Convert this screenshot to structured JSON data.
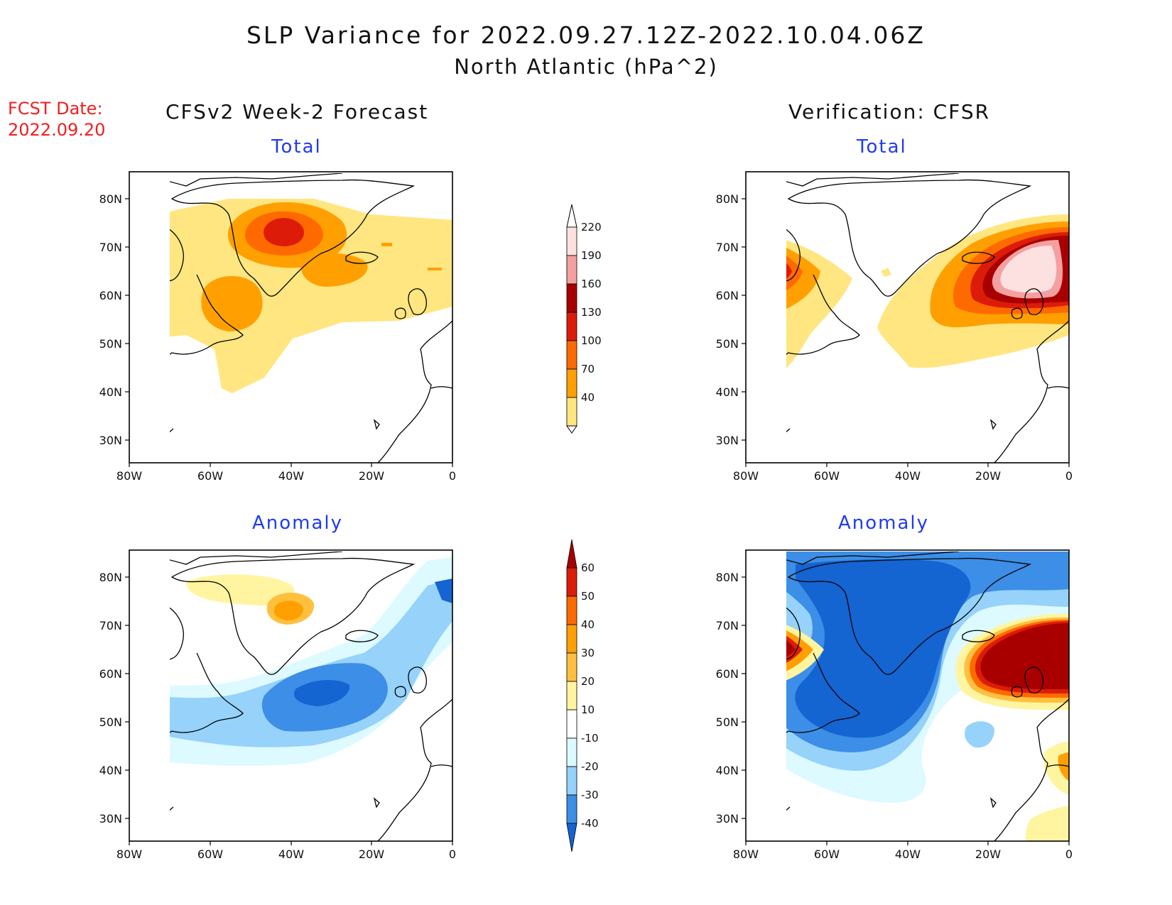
{
  "title_line1": "SLP Variance for 2022.09.27.12Z-2022.10.04.06Z",
  "title_line2": "North Atlantic (hPa^2)",
  "fcst_date_label": "FCST Date:",
  "fcst_date_value": "2022.09.20",
  "columns": {
    "left": "CFSv2 Week-2 Forecast",
    "right": "Verification: CFSR"
  },
  "panels": {
    "fcst_total": "Total",
    "verif_total": "Total",
    "fcst_anomaly": "Anomaly",
    "verif_anomaly": "Anomaly"
  },
  "axes": {
    "lat_labels": [
      "80N",
      "70N",
      "60N",
      "50N",
      "40N",
      "30N"
    ],
    "lon_labels": [
      "80W",
      "60W",
      "40W",
      "20W",
      "0"
    ]
  },
  "total_colorbar": {
    "levels": [
      "220",
      "190",
      "160",
      "130",
      "100",
      "70",
      "40"
    ],
    "colors": [
      "#fde0e0",
      "#f4a0a0",
      "#a80000",
      "#dc1c08",
      "#ff6a00",
      "#ffa000",
      "#ffe680"
    ]
  },
  "anomaly_colorbar": {
    "levels": [
      "60",
      "50",
      "40",
      "30",
      "20",
      "10",
      "-10",
      "-20",
      "-30",
      "-40"
    ],
    "colors": [
      "#a80000",
      "#dc1c08",
      "#ff6a00",
      "#ffa000",
      "#ffc040",
      "#fff5a0",
      "#ffffff",
      "#dcfaff",
      "#96d2fa",
      "#3c8ee6",
      "#1464d2"
    ]
  },
  "colors": {
    "title": "#111111",
    "fcst_date": "#f02020",
    "panel_title": "#1f3bf0"
  }
}
